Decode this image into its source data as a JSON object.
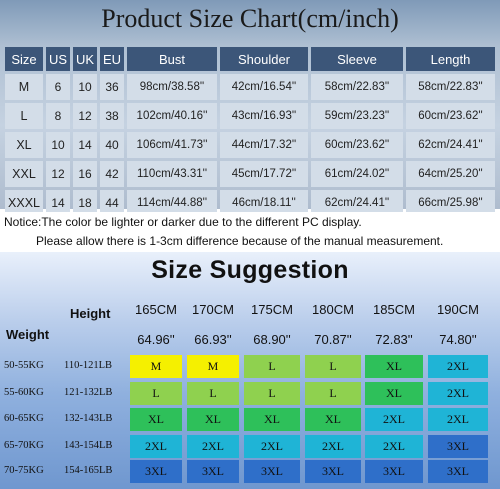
{
  "title": "Product Size Chart(cm/inch)",
  "size_table": {
    "headers": [
      "Size",
      "US",
      "UK",
      "EU",
      "Bust",
      "Shoulder",
      "Sleeve",
      "Length"
    ],
    "rows": [
      [
        "M",
        "6",
        "10",
        "36",
        "98cm/38.58''",
        "42cm/16.54''",
        "58cm/22.83''",
        "58cm/22.83''"
      ],
      [
        "L",
        "8",
        "12",
        "38",
        "102cm/40.16''",
        "43cm/16.93''",
        "59cm/23.23''",
        "60cm/23.62''"
      ],
      [
        "XL",
        "10",
        "14",
        "40",
        "106cm/41.73''",
        "44cm/17.32''",
        "60cm/23.62''",
        "62cm/24.41''"
      ],
      [
        "XXL",
        "12",
        "16",
        "42",
        "110cm/43.31''",
        "45cm/17.72''",
        "61cm/24.02''",
        "64cm/25.20''"
      ],
      [
        "XXXL",
        "14",
        "18",
        "44",
        "114cm/44.88''",
        "46cm/18.11''",
        "62cm/24.41''",
        "66cm/25.98''"
      ]
    ]
  },
  "notice": {
    "line1": "Notice:The color be lighter or darker due to the different PC display.",
    "line2": "Please allow there is 1-3cm difference because of the manual measurement."
  },
  "suggestion": {
    "title": "Size Suggestion",
    "height_label": "Height",
    "weight_label": "Weight",
    "heights_cm": [
      "165CM",
      "170CM",
      "175CM",
      "180CM",
      "185CM",
      "190CM"
    ],
    "heights_in": [
      "64.96''",
      "66.93''",
      "68.90''",
      "70.87''",
      "72.83''",
      "74.80''"
    ],
    "weights_kg": [
      "50-55KG",
      "55-60KG",
      "60-65KG",
      "65-70KG",
      "70-75KG"
    ],
    "weights_lb": [
      "110-121LB",
      "121-132LB",
      "132-143LB",
      "143-154LB",
      "154-165LB"
    ],
    "grid": [
      [
        "M",
        "M",
        "L",
        "L",
        "XL",
        "2XL"
      ],
      [
        "L",
        "L",
        "L",
        "L",
        "XL",
        "2XL"
      ],
      [
        "XL",
        "XL",
        "XL",
        "XL",
        "2XL",
        "2XL"
      ],
      [
        "2XL",
        "2XL",
        "2XL",
        "2XL",
        "2XL",
        "3XL"
      ],
      [
        "3XL",
        "3XL",
        "3XL",
        "3XL",
        "3XL",
        "3XL"
      ]
    ],
    "colors": {
      "M": "#f5f000",
      "L": "#8fd14f",
      "XL": "#2ec05a",
      "2XL": "#1fb4d6",
      "3XL": "#2f6fc9"
    }
  }
}
